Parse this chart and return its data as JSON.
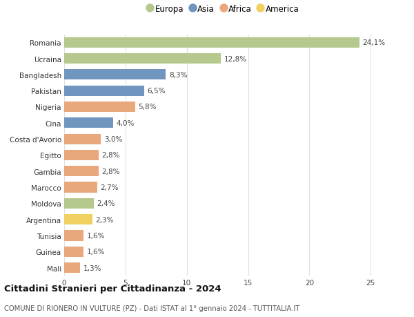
{
  "countries": [
    "Romania",
    "Ucraina",
    "Bangladesh",
    "Pakistan",
    "Nigeria",
    "Cina",
    "Costa d'Avorio",
    "Egitto",
    "Gambia",
    "Marocco",
    "Moldova",
    "Argentina",
    "Tunisia",
    "Guinea",
    "Mali"
  ],
  "values": [
    24.1,
    12.8,
    8.3,
    6.5,
    5.8,
    4.0,
    3.0,
    2.8,
    2.8,
    2.7,
    2.4,
    2.3,
    1.6,
    1.6,
    1.3
  ],
  "labels": [
    "24,1%",
    "12,8%",
    "8,3%",
    "6,5%",
    "5,8%",
    "4,0%",
    "3,0%",
    "2,8%",
    "2,8%",
    "2,7%",
    "2,4%",
    "2,3%",
    "1,6%",
    "1,6%",
    "1,3%"
  ],
  "continents": [
    "Europa",
    "Europa",
    "Asia",
    "Asia",
    "Africa",
    "Asia",
    "Africa",
    "Africa",
    "Africa",
    "Africa",
    "Europa",
    "America",
    "Africa",
    "Africa",
    "Africa"
  ],
  "colors": {
    "Europa": "#b5c98e",
    "Asia": "#7096c0",
    "Africa": "#e8a87c",
    "America": "#f0d060"
  },
  "legend_order": [
    "Europa",
    "Asia",
    "Africa",
    "America"
  ],
  "title": "Cittadini Stranieri per Cittadinanza - 2024",
  "subtitle": "COMUNE DI RIONERO IN VULTURE (PZ) - Dati ISTAT al 1° gennaio 2024 - TUTTITALIA.IT",
  "xlim": [
    0,
    26
  ],
  "xticks": [
    0,
    5,
    10,
    15,
    20,
    25
  ],
  "background_color": "#ffffff",
  "grid_color": "#e0e0e0",
  "bar_height": 0.65,
  "title_fontsize": 9.5,
  "subtitle_fontsize": 7.2,
  "label_fontsize": 7.5,
  "tick_fontsize": 7.5,
  "legend_fontsize": 8.5
}
